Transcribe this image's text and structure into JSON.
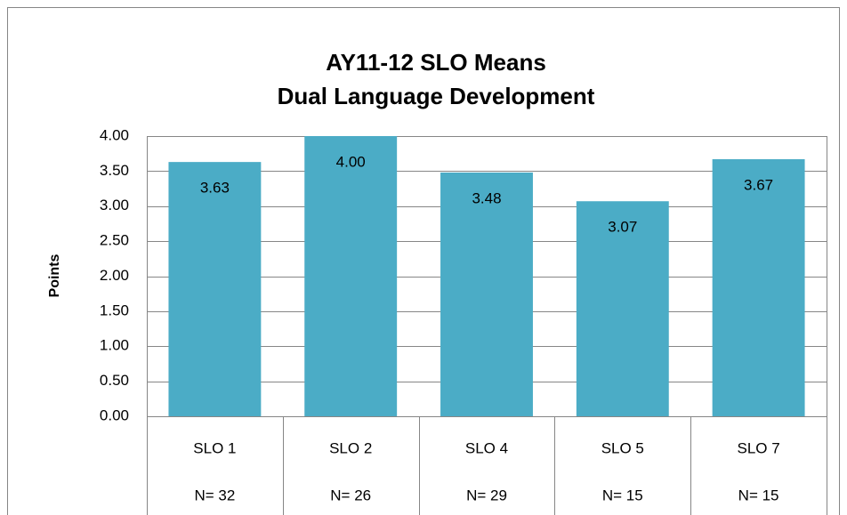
{
  "chart_data": {
    "type": "bar",
    "title": "AY11-12 SLO Means",
    "subtitle": "Dual Language Development",
    "y_label": "Points",
    "categories": [
      "SLO 1",
      "SLO 2",
      "SLO 4",
      "SLO 5",
      "SLO 7"
    ],
    "category_counts": [
      "N= 32",
      "N= 26",
      "N= 29",
      "N= 15",
      "N= 15"
    ],
    "values": [
      3.63,
      4.0,
      3.48,
      3.07,
      3.67
    ],
    "value_labels": [
      "3.63",
      "4.00",
      "3.48",
      "3.07",
      "3.67"
    ],
    "color": "#4bacc6",
    "ylim": [
      0,
      4
    ],
    "yticks": [
      {
        "value": 0,
        "label": "0.00"
      },
      {
        "value": 0.5,
        "label": "0.50"
      },
      {
        "value": 1,
        "label": "1.00"
      },
      {
        "value": 1.5,
        "label": "1.50"
      },
      {
        "value": 2,
        "label": "2.00"
      },
      {
        "value": 2.5,
        "label": "2.50"
      },
      {
        "value": 3,
        "label": "3.00"
      },
      {
        "value": 3.5,
        "label": "3.50"
      },
      {
        "value": 4,
        "label": "4.00"
      }
    ],
    "grid": true
  }
}
